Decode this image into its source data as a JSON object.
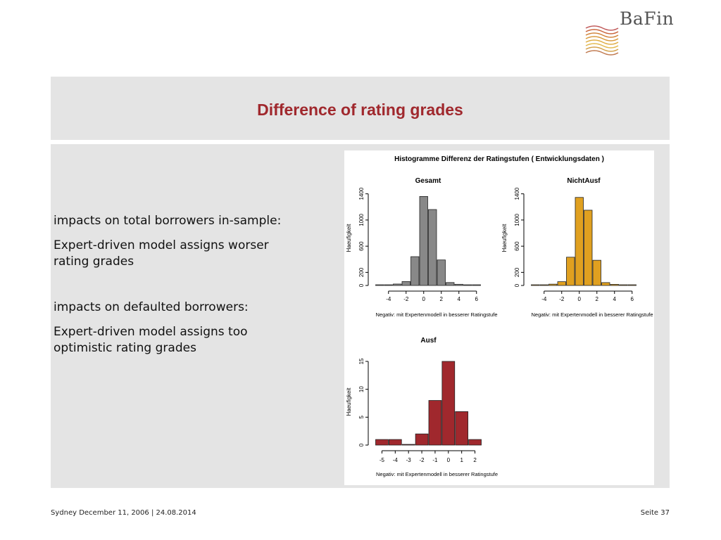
{
  "brand": {
    "logo_text": "BaFin"
  },
  "slide": {
    "title": "Difference of rating grades",
    "bullets": [
      "impacts on total borrowers in-sample:",
      "Expert-driven model assigns worser rating grades",
      "impacts on defaulted borrowers:",
      "Expert-driven model assigns too optimistic rating grades"
    ]
  },
  "footer": {
    "left": "Sydney December 11, 2006 | 24.08.2014",
    "right": "Seite 37"
  },
  "colors": {
    "title": "#a0282d",
    "gesamt": "#888888",
    "nichtausf": "#e0a020",
    "ausf": "#a0282d",
    "band": "#e4e4e4"
  },
  "figure_title": "Histogramme  Differenz der Ratingstufen ( Entwicklungsdaten )",
  "chart_data": [
    {
      "type": "bar",
      "title": "Gesamt",
      "xlabel": "Negativ: mit Expertenmodell in besserer Ratingstufe",
      "ylabel": "Haeufigkeit",
      "x": [
        -5,
        -4,
        -3,
        -2,
        -1,
        0,
        1,
        2,
        3,
        4,
        5,
        6
      ],
      "values": [
        5,
        4,
        22,
        60,
        440,
        1360,
        1160,
        390,
        45,
        18,
        8,
        3
      ],
      "xticks": [
        -4,
        -2,
        0,
        2,
        4,
        6
      ],
      "yticks": [
        0,
        200,
        600,
        1000,
        1400
      ],
      "ylim": [
        0,
        1450
      ],
      "color": "#888888"
    },
    {
      "type": "bar",
      "title": "NichtAusf",
      "xlabel": "Negativ: mit Expertenmodell in besserer Ratingstufe",
      "ylabel": "Haeufigkeit",
      "x": [
        -5,
        -4,
        -3,
        -2,
        -1,
        0,
        1,
        2,
        3,
        4,
        5,
        6
      ],
      "values": [
        4,
        3,
        20,
        58,
        432,
        1345,
        1150,
        385,
        44,
        17,
        8,
        3
      ],
      "xticks": [
        -4,
        -2,
        0,
        2,
        4,
        6
      ],
      "yticks": [
        0,
        200,
        600,
        1000,
        1400
      ],
      "ylim": [
        0,
        1450
      ],
      "color": "#e0a020"
    },
    {
      "type": "bar",
      "title": "Ausf",
      "xlabel": "Negativ: mit Expertenmodell in besserer Ratingstufe",
      "ylabel": "Haeufigkeit",
      "x": [
        -5,
        -4,
        -3,
        -2,
        -1,
        0,
        1,
        2
      ],
      "values": [
        1,
        1,
        0,
        2,
        8,
        15,
        6,
        1
      ],
      "xticks": [
        -5,
        -4,
        -3,
        -2,
        -1,
        0,
        1,
        2
      ],
      "yticks": [
        0,
        5,
        10,
        15
      ],
      "ylim": [
        0,
        15.5
      ],
      "color": "#a0282d"
    }
  ]
}
